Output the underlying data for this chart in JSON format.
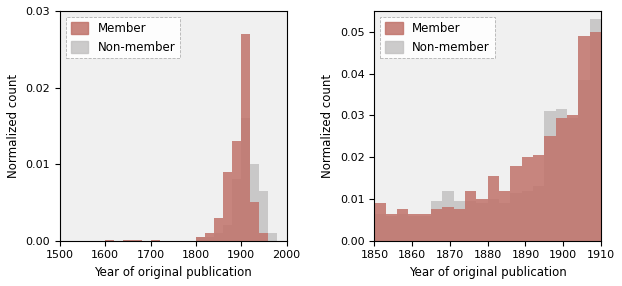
{
  "left": {
    "member_bins": [
      1500,
      1550,
      1600,
      1620,
      1640,
      1660,
      1680,
      1700,
      1720,
      1740,
      1760,
      1780,
      1800,
      1820,
      1840,
      1860,
      1880,
      1900,
      1920,
      1940,
      1960,
      1980,
      2000
    ],
    "member_vals": [
      0.0,
      0.0,
      0.0001,
      0.0,
      0.0001,
      0.0001,
      0.0,
      0.0001,
      0.0,
      0.0,
      0.0,
      0.0,
      0.0005,
      0.001,
      0.003,
      0.009,
      0.013,
      0.027,
      0.005,
      0.001,
      0.0,
      0.0
    ],
    "nonmember_bins": [
      1500,
      1550,
      1600,
      1620,
      1640,
      1660,
      1680,
      1700,
      1720,
      1740,
      1760,
      1780,
      1800,
      1820,
      1840,
      1860,
      1880,
      1900,
      1920,
      1940,
      1960,
      1980,
      2000
    ],
    "nonmember_vals": [
      0.0,
      0.0,
      0.0001,
      0.0,
      0.0001,
      0.0001,
      0.0,
      0.0001,
      0.0,
      0.0,
      0.0,
      0.0,
      0.0005,
      0.0005,
      0.001,
      0.002,
      0.008,
      0.016,
      0.01,
      0.0065,
      0.001,
      0.0
    ],
    "xlim": [
      1500,
      2000
    ],
    "xticks": [
      1500,
      1600,
      1700,
      1800,
      1900,
      2000
    ],
    "ylim": [
      0,
      0.03
    ],
    "yticks": [
      0.0,
      0.01,
      0.02,
      0.03
    ],
    "xlabel": "Year of original publication",
    "ylabel": "Normalized count"
  },
  "right": {
    "member_bins": [
      1850,
      1853,
      1856,
      1859,
      1862,
      1865,
      1868,
      1871,
      1874,
      1877,
      1880,
      1883,
      1886,
      1889,
      1892,
      1895,
      1898,
      1901,
      1904,
      1907,
      1910
    ],
    "member_vals": [
      0.009,
      0.0065,
      0.0075,
      0.0065,
      0.0065,
      0.0075,
      0.008,
      0.0075,
      0.012,
      0.01,
      0.0155,
      0.012,
      0.018,
      0.02,
      0.0205,
      0.025,
      0.0295,
      0.03,
      0.049,
      0.05
    ],
    "nonmember_bins": [
      1850,
      1853,
      1856,
      1859,
      1862,
      1865,
      1868,
      1871,
      1874,
      1877,
      1880,
      1883,
      1886,
      1889,
      1892,
      1895,
      1898,
      1901,
      1904,
      1907,
      1910
    ],
    "nonmember_vals": [
      0.0065,
      0.006,
      0.0065,
      0.006,
      0.006,
      0.0095,
      0.012,
      0.0095,
      0.0095,
      0.009,
      0.01,
      0.009,
      0.0115,
      0.012,
      0.013,
      0.031,
      0.0315,
      0.0295,
      0.0385,
      0.053
    ],
    "xlim": [
      1850,
      1910
    ],
    "xticks": [
      1850,
      1860,
      1870,
      1880,
      1890,
      1900,
      1910
    ],
    "ylim": [
      0,
      0.055
    ],
    "yticks": [
      0.0,
      0.01,
      0.02,
      0.03,
      0.04,
      0.05
    ],
    "xlabel": "Year of original publication",
    "ylabel": "Normalized count"
  },
  "member_color": "#c0736a",
  "nonmember_color": "#c0bfbf",
  "member_alpha": 0.85,
  "nonmember_alpha": 0.8,
  "legend_member": "Member",
  "legend_nonmember": "Non-member",
  "bg_color": "#f0f0f0"
}
